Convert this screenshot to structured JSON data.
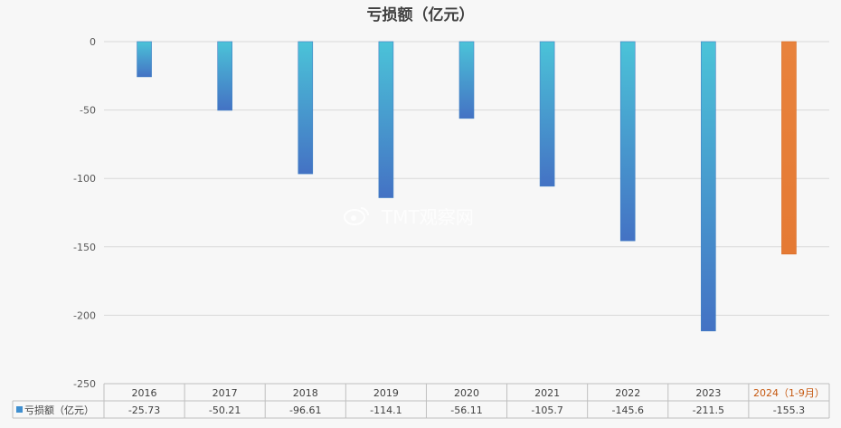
{
  "chart_data": {
    "type": "bar",
    "title": "亏损额（亿元）",
    "categories": [
      "2016",
      "2017",
      "2018",
      "2019",
      "2020",
      "2021",
      "2022",
      "2023",
      "2024（1-9月）"
    ],
    "series": [
      {
        "name": "亏损额（亿元）",
        "values": [
          -25.73,
          -50.21,
          -96.61,
          -114.1,
          -56.11,
          -105.7,
          -145.6,
          -211.5,
          -155.3
        ]
      }
    ],
    "value_labels": [
      "-25.73",
      "-50.21",
      "-96.61",
      "-114.1",
      "-56.11",
      "-105.7",
      "-145.6",
      "-211.5",
      "-155.3"
    ],
    "yticks": [
      0,
      -50,
      -100,
      -150,
      -200,
      -250
    ],
    "ylim": [
      -250,
      0
    ],
    "grid": true,
    "data_table": true,
    "highlight_index": 8,
    "colors": {
      "bar_top": "#4bc3d8",
      "bar_bottom": "#4472c4",
      "highlight": "#e57a34",
      "highlight_label": "#c65911",
      "legend_key": "#3f8fd0"
    }
  },
  "watermark": "TMT观察网"
}
